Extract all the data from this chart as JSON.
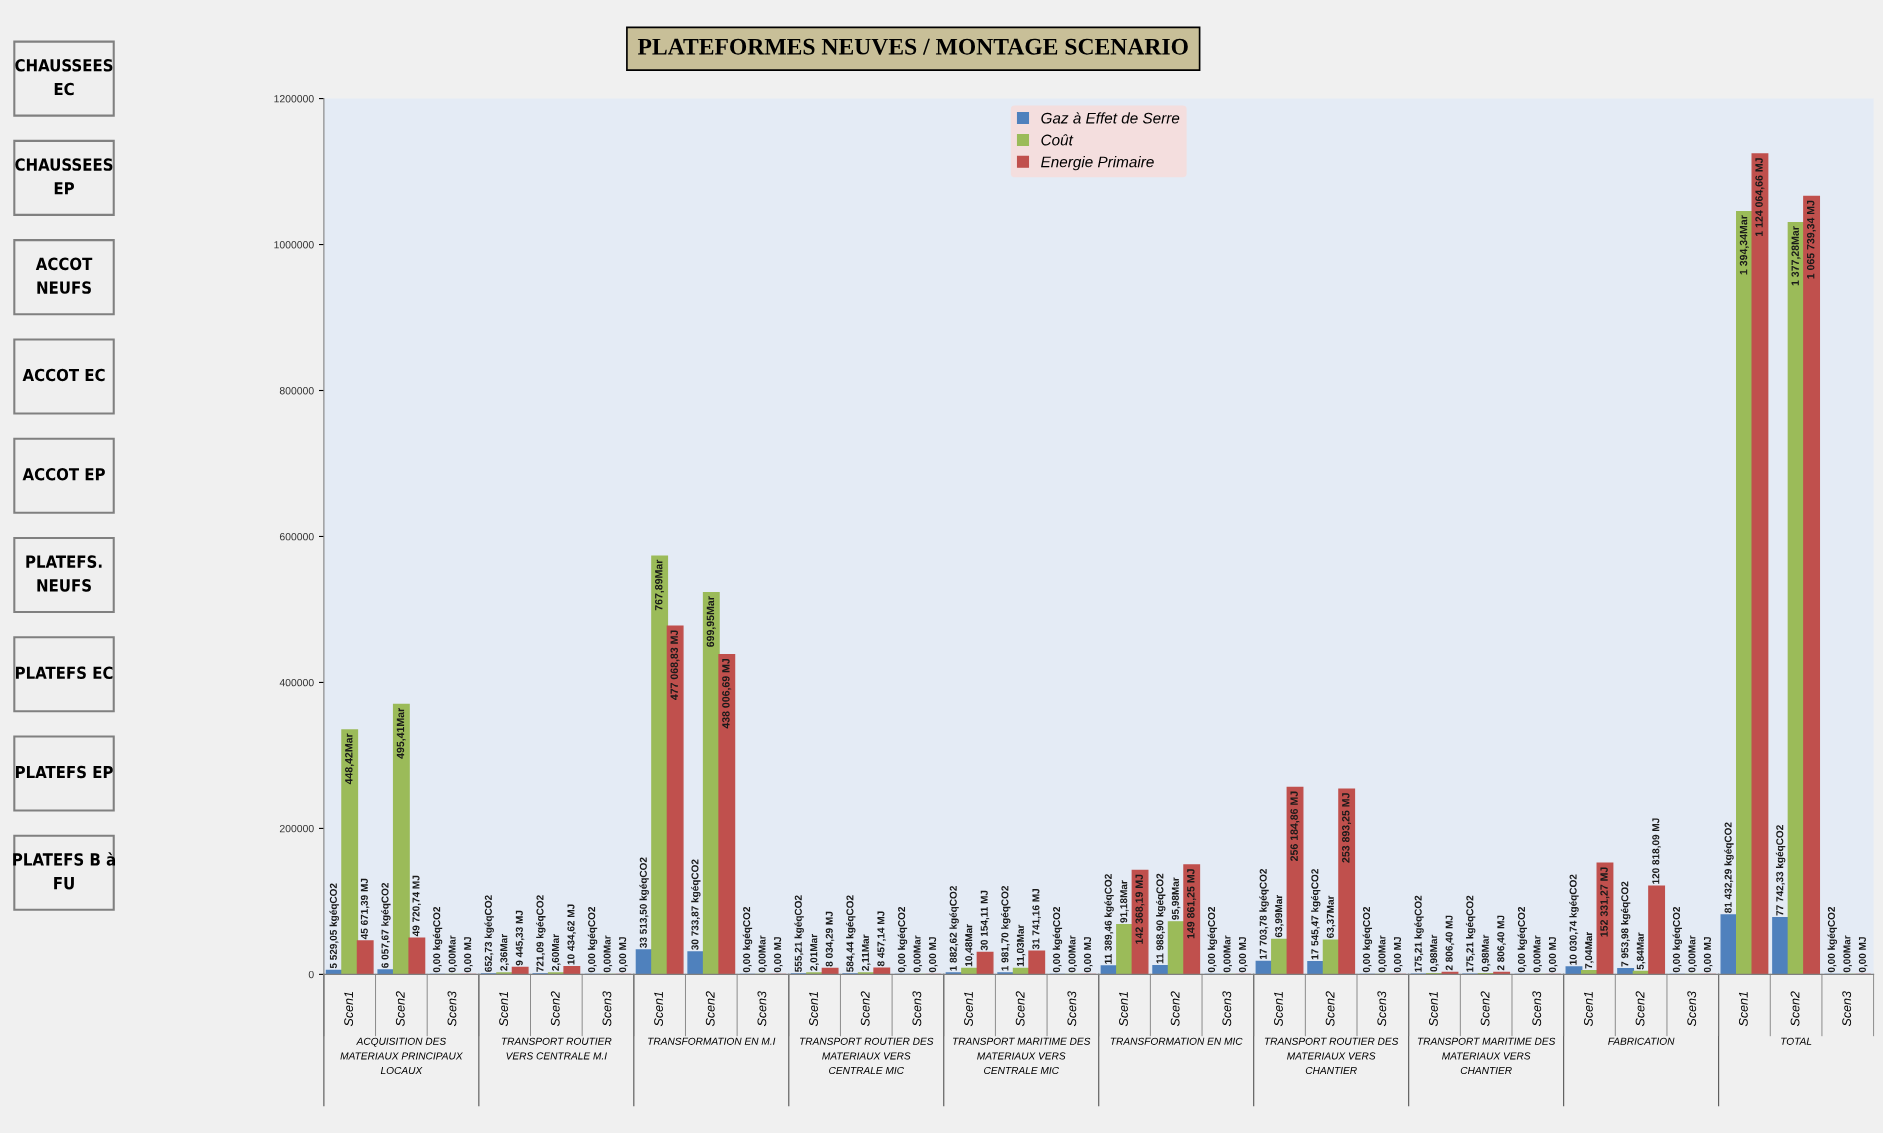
{
  "chart_data": [
    {
      "type": "other",
      "annotations": [
        "CHAUSSEES\nEC",
        "CHAUSSEES\nEP",
        "ACCOT\nNEUFS",
        "ACCOT EC",
        "ACCOT EP",
        "PLATEFS.\nNEUFS",
        "PLATEFS EC",
        "PLATEFS EP",
        "PLATEFS B à\nFU"
      ]
    },
    {
      "type": "bar",
      "title": "PLATEFORMES NEUVES / MONTAGE SCENARIO",
      "categories": [
        "Scen1",
        "Scen2",
        "Scen3",
        "Scen1",
        "Scen2",
        "Scen3",
        "Scen1",
        "Scen2",
        "Scen3",
        "Scen1",
        "Scen2",
        "Scen3",
        "Scen1",
        "Scen2",
        "Scen3",
        "Scen1",
        "Scen2",
        "Scen3",
        "Scen1",
        "Scen2",
        "Scen3",
        "Scen1",
        "Scen2",
        "Scen3",
        "Scen1",
        "Scen2",
        "Scen3",
        "Scen1",
        "Scen2",
        "Scen3"
      ],
      "annotations": [
        "ACQUISITION DES\nMATERIAUX PRINCIPAUX\nLOCAUX",
        "TRANSPORT ROUTIER\nVERS CENTRALE M.I",
        "TRANSFORMATION EN M.I",
        "TRANSPORT ROUTIER DES\nMATERIAUX VERS\nCENTRALE MIC",
        "TRANSPORT MARITIME DES\nMATERIAUX VERS\nCENTRALE MIC",
        "TRANSFORMATION EN MIC",
        "TRANSPORT ROUTIER DES\nMATERIAUX VERS\nCHANTIER",
        "TRANSPORT MARITIME DES\nMATERIAUX VERS\nCHANTIER",
        "FABRICATION",
        "TOTAL"
      ],
      "series": [
        {
          "name": "Gaz à Effet de Serre",
          "color": "#4f81bd",
          "values": [
            5529.05,
            6057.67,
            0,
            652.73,
            721.09,
            0,
            33513.5,
            30733.87,
            0,
            555.21,
            584.44,
            0,
            1882.62,
            1981.7,
            0,
            11389.46,
            11988.9,
            0,
            17703.78,
            17545.47,
            0,
            175.21,
            175.21,
            0,
            10030.74,
            7953.98,
            0,
            81432.29,
            77742.33,
            0
          ],
          "value_labels": [
            "5 529,05 kgéqCO2",
            "6 057,67 kgéqCO2",
            "0,00 kgéqCO2",
            "652,73 kgéqCO2",
            "721,09 kgéqCO2",
            "0,00 kgéqCO2",
            "33 513,50 kgéqCO2",
            "30 733,87 kgéqCO2",
            "0,00 kgéqCO2",
            "555,21 kgéqCO2",
            "584,44 kgéqCO2",
            "0,00 kgéqCO2",
            "1 882,62 kgéqCO2",
            "1 981,70 kgéqCO2",
            "0,00 kgéqCO2",
            "11 389,46 kgéqCO2",
            "11 988,90 kgéqCO2",
            "0,00 kgéqCO2",
            "17 703,78 kgéqCO2",
            "17 545,47 kgéqCO2",
            "0,00 kgéqCO2",
            "175,21 kgéqCO2",
            "175,21 kgéqCO2",
            "0,00 kgéqCO2",
            "10 030,74 kgéqCO2",
            "7 953,98 kgéqCO2",
            "0,00 kgéqCO2",
            "81 432,29 kgéqCO2",
            "77 742,33 kgéqCO2",
            "0,00 kgéqCO2"
          ]
        },
        {
          "name": "Coût",
          "color": "#9bbb59",
          "values": [
            335000,
            370000,
            0,
            2000,
            2000,
            0,
            573000,
            523000,
            0,
            2000,
            2000,
            0,
            8000,
            8000,
            0,
            68000,
            72000,
            0,
            48000,
            47000,
            0,
            1000,
            1000,
            0,
            5000,
            4000,
            0,
            1045000,
            1030000,
            0
          ],
          "value_labels": [
            "448,42Mar",
            "495,41Mar",
            "0,00Mar",
            "2,36Mar",
            "2,60Mar",
            "0,00Mar",
            "767,89Mar",
            "699,95Mar",
            "0,00Mar",
            "2,01Mar",
            "2,11Mar",
            "0,00Mar",
            "10,48Mar",
            "11,03Mar",
            "0,00Mar",
            "91,18Mar",
            "95,98Mar",
            "0,00Mar",
            "63,99Mar",
            "63,37Mar",
            "0,00Mar",
            "0,98Mar",
            "0,98Mar",
            "0,00Mar",
            "7,04Mar",
            "5,84Mar",
            "0,00Mar",
            "1 394,34Mar",
            "1 377,28Mar",
            "0,00Mar"
          ]
        },
        {
          "name": "Energie Primaire",
          "color": "#c0504d",
          "values": [
            45671.39,
            49720.74,
            0,
            9445.33,
            10434.62,
            0,
            477068.83,
            438006.69,
            0,
            8034.29,
            8457.14,
            0,
            30154.11,
            31741.16,
            0,
            142368.19,
            149861.25,
            0,
            256184.86,
            253893.25,
            0,
            2806.4,
            2806.4,
            0,
            152331.27,
            120818.09,
            0,
            1124064.66,
            1065739.34,
            0
          ],
          "value_labels": [
            "45 671,39 MJ",
            "49 720,74 MJ",
            "0,00 MJ",
            "9 445,33 MJ",
            "10 434,62 MJ",
            "0,00 MJ",
            "477 068,83 MJ",
            "438 006,69 MJ",
            "0,00 MJ",
            "8 034,29 MJ",
            "8 457,14 MJ",
            "0,00 MJ",
            "30 154,11 MJ",
            "31 741,16 MJ",
            "0,00 MJ",
            "142 368,19 MJ",
            "149 861,25 MJ",
            "0,00 MJ",
            "256 184,86 MJ",
            "253 893,25 MJ",
            "0,00 MJ",
            "2 806,40 MJ",
            "2 806,40 MJ",
            "0,00 MJ",
            "152 331,27 MJ",
            "120 818,09 MJ",
            "0,00 MJ",
            "1 124 064,66 MJ",
            "1 065 739,34 MJ",
            "0,00 MJ"
          ]
        }
      ],
      "ylim": [
        0,
        1200000
      ],
      "yticks": [
        0,
        200000,
        400000,
        600000,
        800000,
        1000000,
        1200000
      ],
      "grid": false,
      "legend": "top"
    }
  ]
}
